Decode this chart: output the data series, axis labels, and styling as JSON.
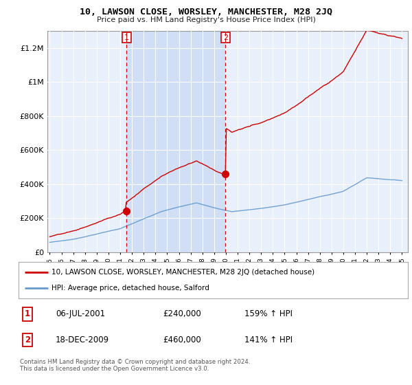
{
  "title": "10, LAWSON CLOSE, WORSLEY, MANCHESTER, M28 2JQ",
  "subtitle": "Price paid vs. HM Land Registry's House Price Index (HPI)",
  "bg_color": "#ffffff",
  "plot_bg": "#e8f0fb",
  "shade_color": "#ccddf5",
  "line1_color": "#cc0000",
  "line2_color": "#6699cc",
  "vline_color": "#cc0000",
  "sale1_x": 2001.54,
  "sale2_x": 2009.96,
  "sale1_price": 240000,
  "sale2_price": 460000,
  "sale1_label": "1",
  "sale2_label": "2",
  "legend_line1": "10, LAWSON CLOSE, WORSLEY, MANCHESTER, M28 2JQ (detached house)",
  "legend_line2": "HPI: Average price, detached house, Salford",
  "table_row1": [
    "1",
    "06-JUL-2001",
    "£240,000",
    "159% ↑ HPI"
  ],
  "table_row2": [
    "2",
    "18-DEC-2009",
    "£460,000",
    "141% ↑ HPI"
  ],
  "footer": "Contains HM Land Registry data © Crown copyright and database right 2024.\nThis data is licensed under the Open Government Licence v3.0.",
  "ylim": [
    0,
    1300000
  ],
  "xlim_left": 1994.8,
  "xlim_right": 2025.5,
  "yticks": [
    0,
    200000,
    400000,
    600000,
    800000,
    1000000,
    1200000
  ],
  "ytick_labels": [
    "£0",
    "£200K",
    "£400K",
    "£600K",
    "£800K",
    "£1M",
    "£1.2M"
  ]
}
